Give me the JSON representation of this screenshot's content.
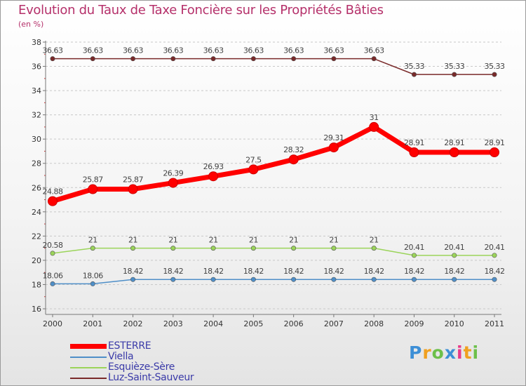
{
  "chart_data": {
    "type": "line",
    "title": "Evolution du Taux de Taxe Foncière sur les Propriétés Bâties",
    "ylabel": "(en %)",
    "xlabel": "",
    "x": [
      "2000",
      "2001",
      "2002",
      "2003",
      "2004",
      "2005",
      "2006",
      "2007",
      "2008",
      "2009",
      "2010",
      "2011"
    ],
    "ylim": [
      16,
      38
    ],
    "yticks": [
      16,
      18,
      20,
      22,
      24,
      26,
      28,
      30,
      32,
      34,
      36,
      38
    ],
    "grid": "horizontal-dashed",
    "legend_position": "bottom-left",
    "series": [
      {
        "name": "ESTERRE",
        "color": "#ff0000",
        "emphasis": true,
        "values": [
          24.88,
          25.87,
          25.87,
          26.39,
          26.93,
          27.5,
          28.32,
          29.31,
          31,
          28.91,
          28.91,
          28.91
        ],
        "labels": [
          "24.88",
          "25.87",
          "25.87",
          "26.39",
          "26.93",
          "27.5",
          "28.32",
          "29.31",
          "31",
          "28.91",
          "28.91",
          "28.91"
        ]
      },
      {
        "name": "Viella",
        "color": "#4f8fc8",
        "values": [
          18.06,
          18.06,
          18.42,
          18.42,
          18.42,
          18.42,
          18.42,
          18.42,
          18.42,
          18.42,
          18.42,
          18.42
        ],
        "labels": [
          "18.06",
          "18.06",
          "18.42",
          "18.42",
          "18.42",
          "18.42",
          "18.42",
          "18.42",
          "18.42",
          "18.42",
          "18.42",
          "18.42"
        ]
      },
      {
        "name": "Esquièze-Sère",
        "color": "#9bd45a",
        "values": [
          20.58,
          21,
          21,
          21,
          21,
          21,
          21,
          21,
          21,
          20.41,
          20.41,
          20.41
        ],
        "labels": [
          "20.58",
          "21",
          "21",
          "21",
          "21",
          "21",
          "21",
          "21",
          "21",
          "20.41",
          "20.41",
          "20.41"
        ]
      },
      {
        "name": "Luz-Saint-Sauveur",
        "color": "#7a2a2a",
        "values": [
          36.63,
          36.63,
          36.63,
          36.63,
          36.63,
          36.63,
          36.63,
          36.63,
          36.63,
          35.33,
          35.33,
          35.33
        ],
        "labels": [
          "36.63",
          "36.63",
          "36.63",
          "36.63",
          "36.63",
          "36.63",
          "36.63",
          "36.63",
          "36.63",
          "35.33",
          "35.33",
          "35.33"
        ]
      }
    ]
  },
  "logo": {
    "letters": [
      "P",
      "r",
      "o",
      "x",
      "i",
      "t",
      "i"
    ],
    "colors": [
      "#3d8fd6",
      "#f0a020",
      "#6cc04a",
      "#3d8fd6",
      "#e83a8a",
      "#f0a020",
      "#6cc04a"
    ]
  }
}
